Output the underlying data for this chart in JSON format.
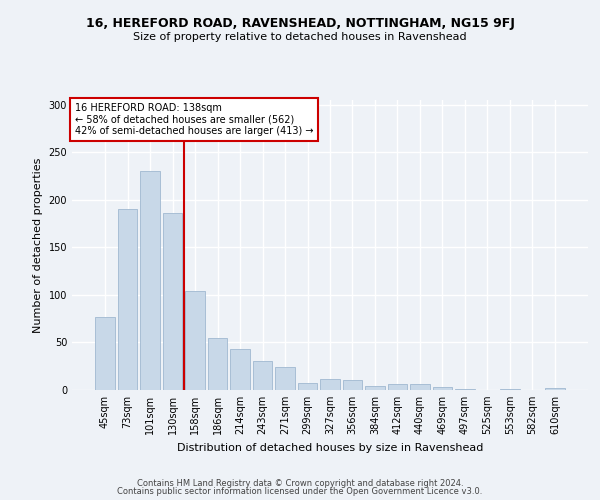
{
  "title1": "16, HEREFORD ROAD, RAVENSHEAD, NOTTINGHAM, NG15 9FJ",
  "title2": "Size of property relative to detached houses in Ravenshead",
  "xlabel": "Distribution of detached houses by size in Ravenshead",
  "ylabel": "Number of detached properties",
  "categories": [
    "45sqm",
    "73sqm",
    "101sqm",
    "130sqm",
    "158sqm",
    "186sqm",
    "214sqm",
    "243sqm",
    "271sqm",
    "299sqm",
    "327sqm",
    "356sqm",
    "384sqm",
    "412sqm",
    "440sqm",
    "469sqm",
    "497sqm",
    "525sqm",
    "553sqm",
    "582sqm",
    "610sqm"
  ],
  "values": [
    77,
    190,
    230,
    186,
    104,
    55,
    43,
    31,
    24,
    7,
    12,
    11,
    4,
    6,
    6,
    3,
    1,
    0,
    1,
    0,
    2
  ],
  "bar_color": "#c8d8e8",
  "bar_edgecolor": "#a0b8d0",
  "vline_x": 3.5,
  "vline_color": "#cc0000",
  "annotation_line1": "16 HEREFORD ROAD: 138sqm",
  "annotation_line2": "← 58% of detached houses are smaller (562)",
  "annotation_line3": "42% of semi-detached houses are larger (413) →",
  "annotation_box_edgecolor": "#cc0000",
  "ylim": [
    0,
    305
  ],
  "yticks": [
    0,
    50,
    100,
    150,
    200,
    250,
    300
  ],
  "footer1": "Contains HM Land Registry data © Crown copyright and database right 2024.",
  "footer2": "Contains public sector information licensed under the Open Government Licence v3.0.",
  "bg_color": "#eef2f7",
  "plot_bg_color": "#eef2f7",
  "grid_color": "#ffffff",
  "title1_fontsize": 9,
  "title2_fontsize": 8,
  "ylabel_fontsize": 8,
  "xlabel_fontsize": 8,
  "tick_fontsize": 7,
  "annotation_fontsize": 7,
  "footer_fontsize": 6
}
